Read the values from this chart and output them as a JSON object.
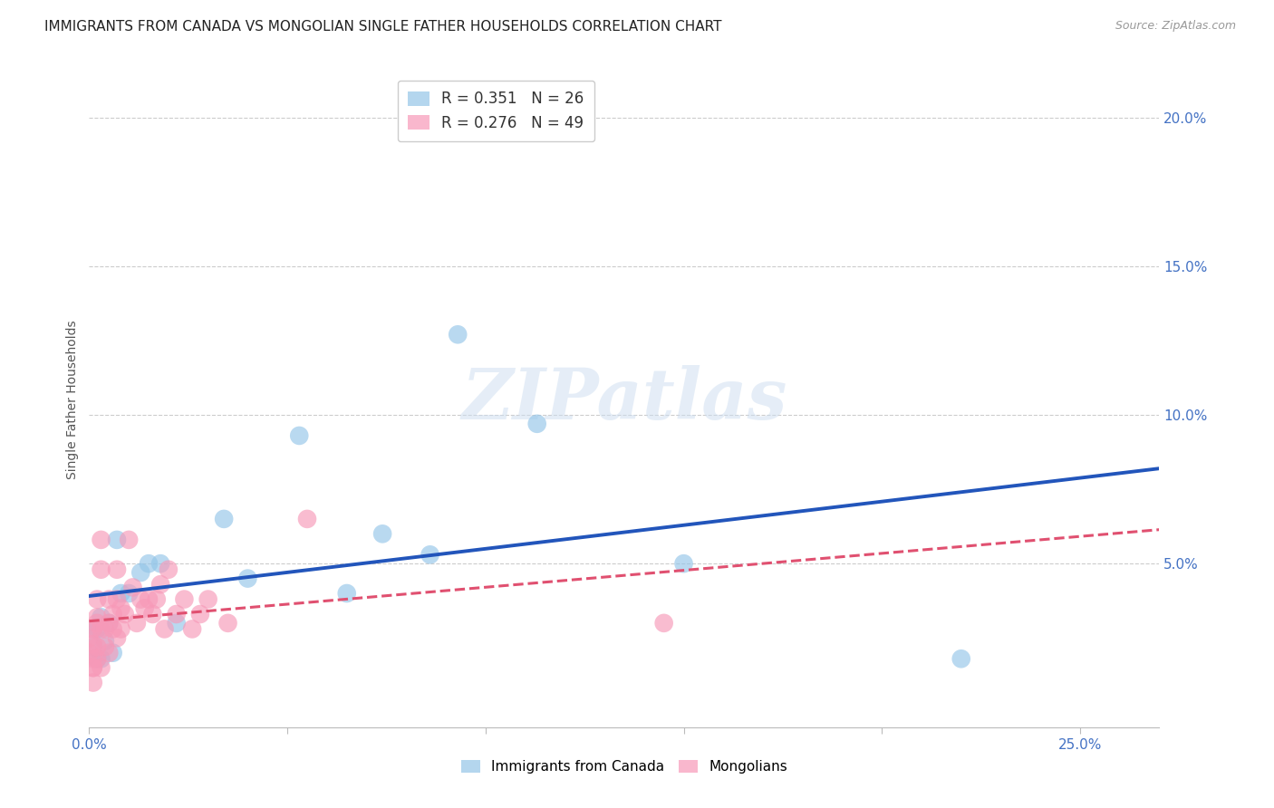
{
  "title": "IMMIGRANTS FROM CANADA VS MONGOLIAN SINGLE FATHER HOUSEHOLDS CORRELATION CHART",
  "source": "Source: ZipAtlas.com",
  "ylabel": "Single Father Households",
  "xlim": [
    0.0,
    0.27
  ],
  "ylim": [
    -0.005,
    0.215
  ],
  "blue_color": "#94c5e8",
  "pink_color": "#f799b8",
  "trend_blue": "#2255bb",
  "trend_pink": "#e05070",
  "legend_entry1": "R = 0.351   N = 26",
  "legend_entry2": "R = 0.276   N = 49",
  "legend_label1": "Immigrants from Canada",
  "legend_label2": "Mongolians",
  "watermark": "ZIPatlas",
  "background_color": "#ffffff",
  "canada_x": [
    0.001,
    0.001,
    0.002,
    0.002,
    0.003,
    0.003,
    0.004,
    0.005,
    0.006,
    0.007,
    0.008,
    0.01,
    0.013,
    0.015,
    0.018,
    0.022,
    0.034,
    0.04,
    0.053,
    0.065,
    0.074,
    0.086,
    0.093,
    0.113,
    0.15,
    0.22
  ],
  "canada_y": [
    0.028,
    0.022,
    0.018,
    0.028,
    0.032,
    0.018,
    0.024,
    0.03,
    0.02,
    0.058,
    0.04,
    0.04,
    0.047,
    0.05,
    0.05,
    0.03,
    0.065,
    0.045,
    0.093,
    0.04,
    0.06,
    0.053,
    0.127,
    0.097,
    0.05,
    0.018
  ],
  "mongolia_x": [
    0.0,
    0.0,
    0.001,
    0.001,
    0.001,
    0.001,
    0.001,
    0.001,
    0.002,
    0.002,
    0.002,
    0.002,
    0.002,
    0.003,
    0.003,
    0.003,
    0.003,
    0.004,
    0.004,
    0.005,
    0.005,
    0.005,
    0.006,
    0.006,
    0.007,
    0.007,
    0.007,
    0.008,
    0.008,
    0.009,
    0.01,
    0.011,
    0.012,
    0.013,
    0.014,
    0.015,
    0.016,
    0.017,
    0.018,
    0.019,
    0.02,
    0.022,
    0.024,
    0.026,
    0.028,
    0.03,
    0.035,
    0.055,
    0.145
  ],
  "mongolia_y": [
    0.02,
    0.025,
    0.018,
    0.023,
    0.015,
    0.01,
    0.028,
    0.015,
    0.038,
    0.032,
    0.018,
    0.022,
    0.03,
    0.058,
    0.048,
    0.015,
    0.028,
    0.028,
    0.022,
    0.038,
    0.02,
    0.03,
    0.033,
    0.028,
    0.048,
    0.038,
    0.025,
    0.028,
    0.035,
    0.033,
    0.058,
    0.042,
    0.03,
    0.038,
    0.035,
    0.038,
    0.033,
    0.038,
    0.043,
    0.028,
    0.048,
    0.033,
    0.038,
    0.028,
    0.033,
    0.038,
    0.03,
    0.065,
    0.03
  ]
}
